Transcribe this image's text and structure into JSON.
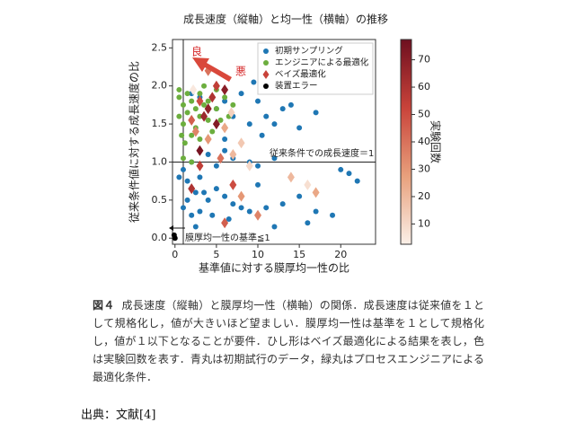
{
  "chart_data": {
    "type": "scatter",
    "title": "成長速度（縦軸）と均一性（横軸）の推移",
    "xlabel": "基準値に対する膜厚均一性の比",
    "ylabel": "従来条件値に対する成長速度の比",
    "xlim": [
      -0.3,
      24.2
    ],
    "ylim": [
      -0.08,
      2.61
    ],
    "xticks": [
      0,
      5,
      10,
      15,
      20
    ],
    "yticks": [
      {
        "value": 0,
        "label": "0.0"
      },
      0.5,
      {
        "value": 1,
        "label": "1.0"
      },
      1.5,
      {
        "value": 2,
        "label": "2.0"
      },
      2.5
    ],
    "hline": 1,
    "vline": 1,
    "legend": "upper right",
    "colorbar": {
      "label": "実験回数",
      "lim": [
        2.6,
        77.4
      ],
      "ticks": [
        10,
        20,
        30,
        40,
        50,
        60,
        70
      ],
      "colormap": [
        "#fbf0e8",
        "#e8a07c",
        "#c9433a",
        "#6e0f1f"
      ]
    },
    "annotations": [
      "良",
      "悪",
      "従来条件での成長速度＝1",
      "膜厚均一性の基準≦1"
    ],
    "series": [
      {
        "name": "初期サンプリング",
        "marker": "circle",
        "color": "#1f77b4",
        "x": [
          2,
          3,
          5,
          6,
          7,
          8,
          9,
          10,
          11,
          12,
          13,
          14,
          15,
          17,
          9.5,
          10.5,
          8,
          6,
          4,
          2,
          1,
          1.5,
          3,
          2.5,
          4,
          3,
          2,
          2.5,
          4.5,
          5,
          6,
          7,
          8,
          6.5,
          9,
          10,
          11,
          13,
          12,
          15,
          17,
          19,
          22,
          21,
          20,
          16,
          10,
          9,
          7,
          5,
          3.5,
          1.5,
          6,
          12,
          0.5,
          1
        ],
        "y": [
          1.9,
          1.85,
          1.7,
          1.8,
          1.6,
          1.9,
          1.5,
          1.8,
          1.6,
          1.5,
          1.7,
          1.75,
          1.45,
          1.65,
          2.05,
          1.35,
          1.25,
          1.3,
          1.1,
          1.0,
          0.9,
          0.75,
          0.8,
          0.6,
          0.5,
          0.35,
          0.3,
          0.15,
          0.3,
          0.65,
          0.55,
          0.45,
          0.4,
          0.25,
          0.35,
          0.7,
          0.4,
          0.45,
          0.15,
          0.55,
          0.35,
          0.3,
          0.75,
          0.85,
          0.9,
          0.2,
          0.95,
          1.0,
          1.05,
          0.95,
          0.6,
          0.5,
          1.15,
          1.05,
          0.8,
          0.4
        ]
      },
      {
        "name": "エンジニアによる最適化",
        "marker": "circle",
        "color": "#6cae3e",
        "x": [
          0.5,
          1,
          1.5,
          2,
          2.5,
          3,
          3.5,
          4,
          0.5,
          1,
          1.5,
          2,
          2.5,
          3,
          4,
          5,
          6,
          7,
          0.8,
          1.2,
          2,
          3,
          4.5,
          5.5,
          1,
          2,
          0.5,
          3.5,
          5,
          6.5
        ],
        "y": [
          1.85,
          1.75,
          1.9,
          1.8,
          1.7,
          1.9,
          1.75,
          1.8,
          1.6,
          1.5,
          1.65,
          1.55,
          1.45,
          1.6,
          1.55,
          1.7,
          1.85,
          1.75,
          1.35,
          1.25,
          1.35,
          1.3,
          1.4,
          1.55,
          1.05,
          1.0,
          1.95,
          2.0,
          1.95,
          1.6
        ]
      },
      {
        "name": "ベイズ最適化",
        "marker": "diamond",
        "x": [
          4,
          5,
          6,
          4.5,
          3,
          3.5,
          5,
          2,
          2.5,
          4,
          6,
          7,
          8,
          5.5,
          9,
          3,
          2,
          7,
          8,
          14,
          16,
          17,
          10,
          6,
          3,
          4,
          2.2,
          6.8
        ],
        "y": [
          2.2,
          2.0,
          1.95,
          1.85,
          1.8,
          1.6,
          1.5,
          1.55,
          1.4,
          1.3,
          1.45,
          1.1,
          1.25,
          1.05,
          0.95,
          0.95,
          0.65,
          0.7,
          0.55,
          0.8,
          0.7,
          0.6,
          0.3,
          0.2,
          1.15,
          1.7,
          1.95,
          1.65
        ],
        "c": [
          40,
          55,
          70,
          60,
          50,
          65,
          72,
          45,
          35,
          30,
          25,
          20,
          15,
          40,
          10,
          55,
          60,
          50,
          30,
          20,
          8,
          25,
          35,
          45,
          75,
          68,
          5,
          12
        ]
      },
      {
        "name": "装置エラー",
        "marker": "circle",
        "color": "#000000",
        "x": [
          0,
          -0.1
        ],
        "y": [
          0.0,
          0.04
        ]
      }
    ]
  },
  "caption": {
    "label": "図４",
    "text": "成長速度（縦軸）と膜厚均一性（横軸）の関係．成長速度は従来値を１として規格化し，値が大きいほど望ましい．膜厚均一性は基準を１として規格化し，値が１以下となることが要件．ひし形はベイズ最適化による結果を表し，色は実験回数を表す．青丸は初期試行のデータ，緑丸はプロセスエンジニアによる最適化条件．"
  },
  "source": "出典：文献[4]"
}
